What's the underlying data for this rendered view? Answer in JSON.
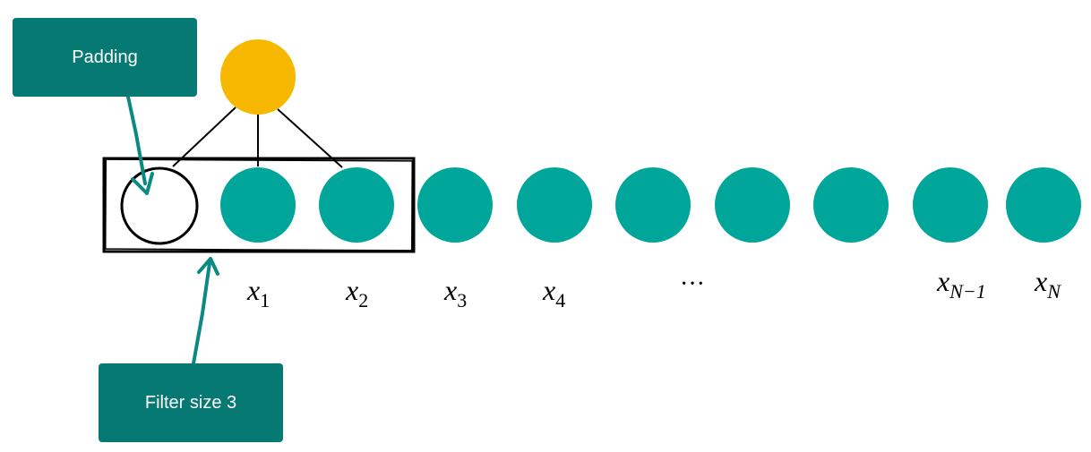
{
  "callouts": {
    "padding_label": "Padding",
    "filter_label": "Filter size 3"
  },
  "input_labels": [
    {
      "base": "x",
      "sub": "1"
    },
    {
      "base": "x",
      "sub": "2"
    },
    {
      "base": "x",
      "sub": "3"
    },
    {
      "base": "x",
      "sub": "4"
    },
    {
      "base": "···",
      "sub": ""
    },
    {
      "base": "x",
      "sub": "N−1"
    },
    {
      "base": "x",
      "sub": "N"
    }
  ],
  "colors": {
    "node": "#00a69a",
    "output_node": "#f6b800",
    "callout": "#067a72",
    "arrow": "#0a8a82",
    "stroke": "#000000"
  }
}
